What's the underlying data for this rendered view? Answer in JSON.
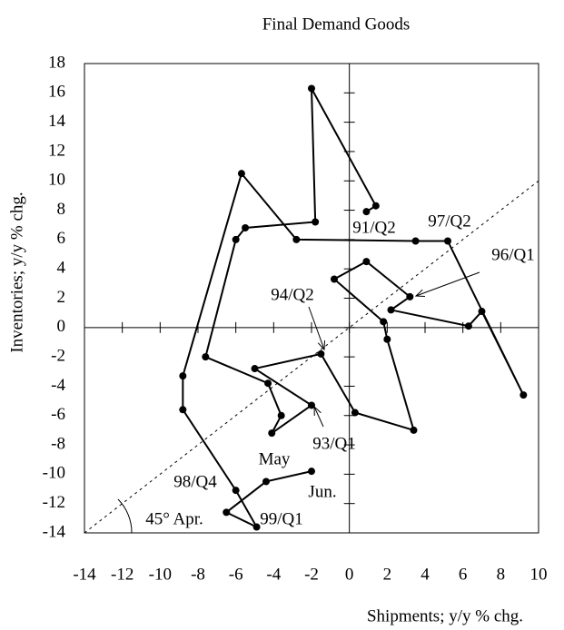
{
  "chart_data": {
    "type": "connected-scatter",
    "title": "Final Demand Goods",
    "x_label": "Shipments; y/y % chg.",
    "y_label": "Inventories; y/y % chg.",
    "xlim": [
      -14,
      10
    ],
    "ylim": [
      -14,
      18
    ],
    "xticks": [
      -14,
      -12,
      -10,
      -8,
      -6,
      -4,
      -2,
      0,
      2,
      4,
      6,
      8,
      10
    ],
    "yticks": [
      -14,
      -12,
      -10,
      -8,
      -6,
      -4,
      -2,
      0,
      2,
      4,
      6,
      8,
      10,
      12,
      14,
      16,
      18
    ],
    "reference_line": "45°",
    "color": "#000000",
    "series": [
      {
        "x": [
          0.9,
          1.4,
          -2,
          -1.8,
          -5.5,
          -6,
          -7.6,
          -4.3,
          -3.6,
          -4.1,
          -2,
          -5,
          -1.5,
          0.3,
          3.4,
          2,
          1.8,
          -0.8,
          0.9,
          3.2,
          2.2,
          6.3,
          7,
          9.2,
          5.2,
          3.5,
          -2.8,
          -5.7,
          -8.8,
          -8.8,
          -6,
          -4.9,
          -6.5,
          -4.4,
          -2
        ],
        "values": [
          7.9,
          8.3,
          16.3,
          7.2,
          6.8,
          6,
          -2,
          -3.8,
          -6,
          -7.2,
          -5.3,
          -2.8,
          -1.8,
          -5.8,
          -7,
          -0.8,
          0.4,
          3.3,
          4.5,
          2.1,
          1.2,
          0.1,
          1.1,
          -4.6,
          5.9,
          5.9,
          6,
          10.5,
          -3.3,
          -5.6,
          -11.1,
          -13.6,
          -12.6,
          -10.5,
          -9.8
        ]
      }
    ],
    "annotations": [
      "91/Q2",
      "97/Q2",
      "96/Q1",
      "94/Q2",
      "93/Q1",
      "May",
      "98/Q4",
      "Jun.",
      "45° Apr.",
      "99/Q1"
    ]
  }
}
